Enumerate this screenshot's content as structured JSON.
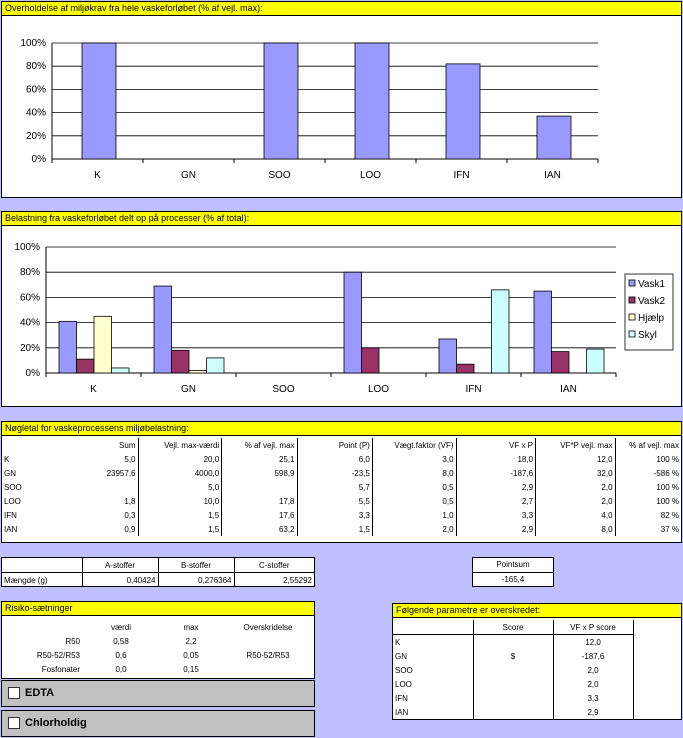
{
  "chart1": {
    "title": "Overholdelse af miljøkrav fra hele vaskeforløbet (% af vejl. max):"
  },
  "chart2": {
    "title": "Belastning fra vaskeforløbet delt op på processer (% af total):"
  },
  "chart_data": [
    {
      "type": "bar",
      "title": "Overholdelse af miljøkrav fra hele vaskeforløbet (% af vejl. max):",
      "categories": [
        "K",
        "GN",
        "SOO",
        "LOO",
        "IFN",
        "IAN"
      ],
      "series": [
        {
          "values": [
            100,
            0,
            100,
            100,
            82,
            37
          ],
          "color": "#9999ff"
        }
      ],
      "yticks": [
        "0%",
        "20%",
        "40%",
        "60%",
        "80%",
        "100%"
      ],
      "ylim": [
        0,
        100
      ],
      "grid": true
    },
    {
      "type": "bar",
      "title": "Belastning fra vaskeforløbet delt op på processer (% af total):",
      "categories": [
        "K",
        "GN",
        "SOO",
        "LOO",
        "IFN",
        "IAN"
      ],
      "series": [
        {
          "name": "Vask1",
          "values": [
            41,
            69,
            0,
            80,
            27,
            65
          ],
          "color": "#9999ff"
        },
        {
          "name": "Vask2",
          "values": [
            11,
            18,
            0,
            20,
            7,
            17
          ],
          "color": "#993366"
        },
        {
          "name": "Hjælp",
          "values": [
            45,
            2,
            0,
            0,
            0,
            0
          ],
          "color": "#ffffcc"
        },
        {
          "name": "Skyl",
          "values": [
            4,
            12,
            0,
            0,
            66,
            19
          ],
          "color": "#ccffff"
        }
      ],
      "yticks": [
        "0%",
        "20%",
        "40%",
        "60%",
        "80%",
        "100%"
      ],
      "ylim": [
        0,
        100
      ],
      "grid": true,
      "legend": "right"
    }
  ],
  "noegletal": {
    "title": "Nøgletal for vaskeprocessens miljøbelastning:",
    "headers": [
      "",
      "Sum",
      "Vejl. max-værdi",
      "% af vejl. max",
      "Point (P)",
      "Vægt.faktor (VF)",
      "VF x P",
      "VF*P vejl. max",
      "% af vejl. max"
    ],
    "rows": [
      [
        "K",
        "5,0",
        "20,0",
        "25,1",
        "6,0",
        "3,0",
        "18,0",
        "12,0",
        "100 %"
      ],
      [
        "GN",
        "23957,6",
        "4000,0",
        "598,9",
        "-23,5",
        "8,0",
        "-187,6",
        "32,0",
        "-586 %"
      ],
      [
        "SOO",
        "",
        "5,0",
        "",
        "5,7",
        "0,5",
        "2,9",
        "2,0",
        "100 %"
      ],
      [
        "LOO",
        "1,8",
        "10,0",
        "17,8",
        "5,5",
        "0,5",
        "2,7",
        "2,0",
        "100 %"
      ],
      [
        "IFN",
        "0,3",
        "1,5",
        "17,6",
        "3,3",
        "1,0",
        "3,3",
        "4,0",
        "82 %"
      ],
      [
        "IAN",
        "0,9",
        "1,5",
        "63,2",
        "1,5",
        "2,0",
        "2,9",
        "8,0",
        "37 %"
      ]
    ]
  },
  "stoffer": {
    "headers": [
      "",
      "A-stoffer",
      "B-stoffer",
      "C-stoffer"
    ],
    "row": [
      "Mængde (g)",
      "0,40424",
      "0,276364",
      "2,55292"
    ]
  },
  "pointsum": {
    "label": "Pointsum",
    "value": "-165,4"
  },
  "risiko": {
    "title": "Risiko-sætninger",
    "headers": [
      "",
      "værdi",
      "max",
      "Overskridelse"
    ],
    "rows": [
      [
        "R50",
        "0,58",
        "2,2",
        ""
      ],
      [
        "R50-52/R53",
        "0,6",
        "0,05",
        "R50-52/R53"
      ],
      [
        "Fosfonater",
        "0,0",
        "0,15",
        ""
      ]
    ]
  },
  "checkboxes": {
    "edta": "EDTA",
    "chlor": "Chlorholdig"
  },
  "parametre": {
    "title": "Følgende parametre er overskredet:",
    "headers": [
      "",
      "Score",
      "VF x P score"
    ],
    "rows": [
      [
        "K",
        "",
        "12,0"
      ],
      [
        "GN",
        "$",
        "-187,6"
      ],
      [
        "SOO",
        "",
        "2,0"
      ],
      [
        "LOO",
        "",
        "2,0"
      ],
      [
        "IFN",
        "",
        "3,3"
      ],
      [
        "IAN",
        "",
        "2,9"
      ]
    ]
  }
}
